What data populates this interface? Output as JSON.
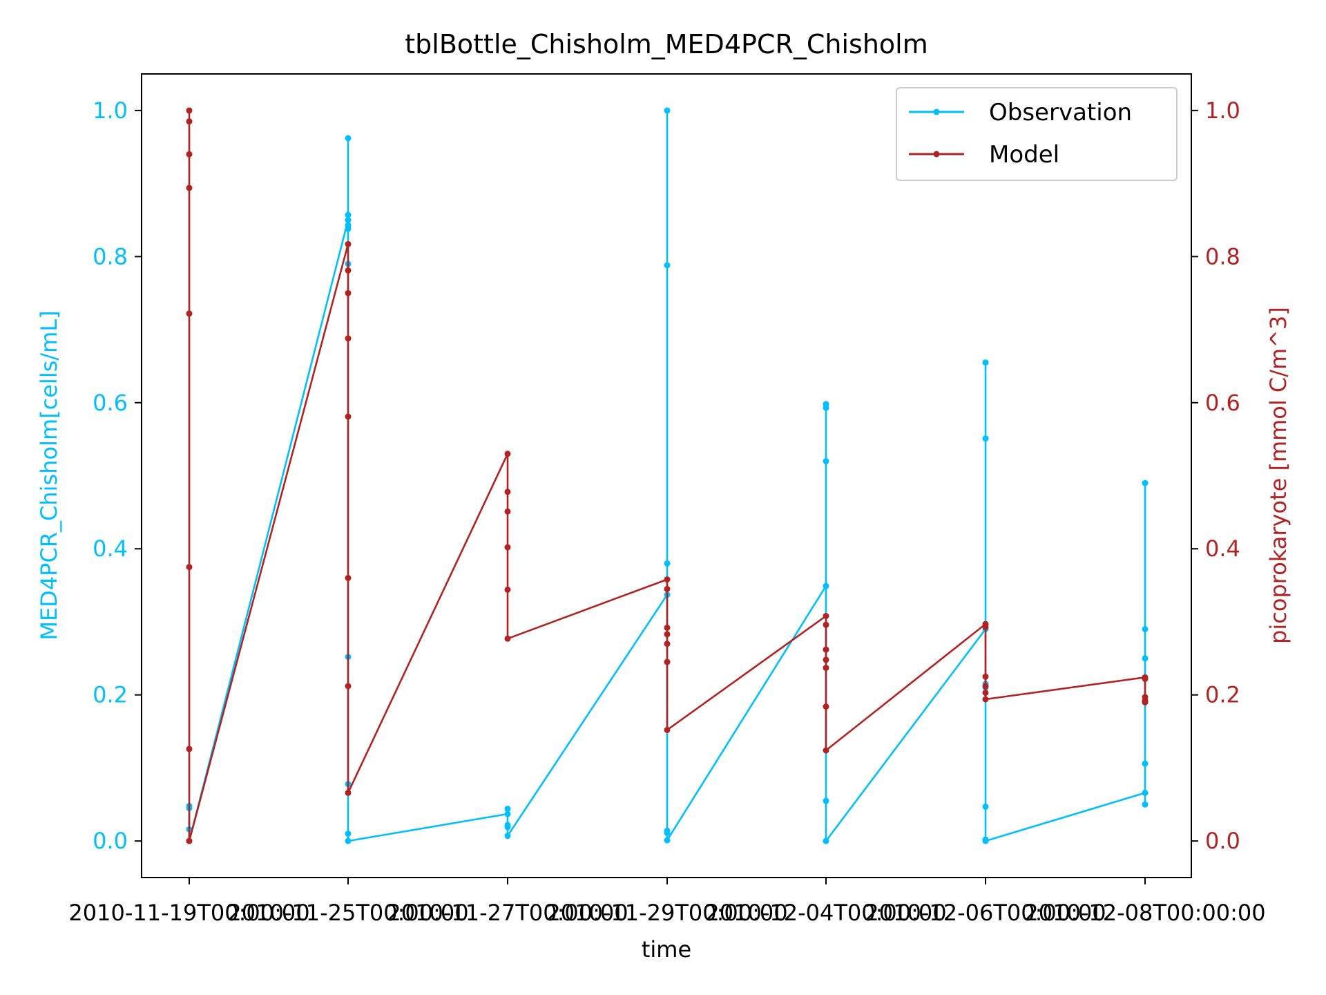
{
  "chart_data": {
    "type": "line",
    "title": "tblBottle_Chisholm_MED4PCR_Chisholm",
    "xlabel": "time",
    "ylabel_left": "MED4PCR_Chisholm[cells/mL]",
    "ylabel_right": "picoprokaryote [mmol C/m^3]",
    "x_tick_labels": [
      "2010-11-19T00:00:00",
      "2010-11-25T00:00:00",
      "2010-11-27T00:00:00",
      "2010-11-29T00:00:00",
      "2010-12-04T00:00:00",
      "2010-12-06T00:00:00",
      "2010-12-08T00:00:00"
    ],
    "y_ticks_left": [
      "0.0",
      "0.2",
      "0.4",
      "0.6",
      "0.8",
      "1.0"
    ],
    "y_ticks_right": [
      "0.0",
      "0.2",
      "0.4",
      "0.6",
      "0.8",
      "1.0"
    ],
    "ylim_left": [
      -0.05,
      1.05
    ],
    "ylim_right": [
      -0.05,
      1.05
    ],
    "legend_position": "top-right",
    "colors": {
      "observation": "#00bfff",
      "model": "#b22222",
      "axis": "#000000"
    },
    "series": [
      {
        "name": "Observation",
        "axis": "left",
        "points": [
          [
            "2010-11-19T00:00:00",
            0.048
          ],
          [
            "2010-11-19T00:00:00",
            0.045
          ],
          [
            "2010-11-19T00:00:00",
            0.016
          ],
          [
            "2010-11-19T00:00:00",
            0.0
          ],
          [
            "2010-11-25T00:00:00",
            0.85
          ],
          [
            "2010-11-25T00:00:00",
            0.962
          ],
          [
            "2010-11-25T00:00:00",
            0.857
          ],
          [
            "2010-11-25T00:00:00",
            0.843
          ],
          [
            "2010-11-25T00:00:00",
            0.838
          ],
          [
            "2010-11-25T00:00:00",
            0.79
          ],
          [
            "2010-11-25T00:00:00",
            0.252
          ],
          [
            "2010-11-25T00:00:00",
            0.078
          ],
          [
            "2010-11-25T00:00:00",
            0.01
          ],
          [
            "2010-11-25T00:00:00",
            0.0
          ],
          [
            "2010-11-27T00:00:00",
            0.037
          ],
          [
            "2010-11-27T00:00:00",
            0.044
          ],
          [
            "2010-11-27T00:00:00",
            0.022
          ],
          [
            "2010-11-27T00:00:00",
            0.019
          ],
          [
            "2010-11-27T00:00:00",
            0.007
          ],
          [
            "2010-11-29T00:00:00",
            0.337
          ],
          [
            "2010-11-29T00:00:00",
            0.38
          ],
          [
            "2010-11-29T00:00:00",
            0.788
          ],
          [
            "2010-11-29T00:00:00",
            1.0
          ],
          [
            "2010-11-29T00:00:00",
            0.014
          ],
          [
            "2010-11-29T00:00:00",
            0.011
          ],
          [
            "2010-11-29T00:00:00",
            0.001
          ],
          [
            "2010-12-04T00:00:00",
            0.349
          ],
          [
            "2010-12-04T00:00:00",
            0.52
          ],
          [
            "2010-12-04T00:00:00",
            0.593
          ],
          [
            "2010-12-04T00:00:00",
            0.598
          ],
          [
            "2010-12-04T00:00:00",
            0.055
          ],
          [
            "2010-12-04T00:00:00",
            0.0
          ],
          [
            "2010-12-06T00:00:00",
            0.29
          ],
          [
            "2010-12-06T00:00:00",
            0.551
          ],
          [
            "2010-12-06T00:00:00",
            0.655
          ],
          [
            "2010-12-06T00:00:00",
            0.215
          ],
          [
            "2010-12-06T00:00:00",
            0.21
          ],
          [
            "2010-12-06T00:00:00",
            0.047
          ],
          [
            "2010-12-06T00:00:00",
            0.002
          ],
          [
            "2010-12-06T00:00:00",
            0.0
          ],
          [
            "2010-12-08T00:00:00",
            0.066
          ],
          [
            "2010-12-08T00:00:00",
            0.05
          ],
          [
            "2010-12-08T00:00:00",
            0.106
          ],
          [
            "2010-12-08T00:00:00",
            0.19
          ],
          [
            "2010-12-08T00:00:00",
            0.25
          ],
          [
            "2010-12-08T00:00:00",
            0.29
          ],
          [
            "2010-12-08T00:00:00",
            0.49
          ]
        ]
      },
      {
        "name": "Model",
        "axis": "right",
        "points": [
          [
            "2010-11-19T00:00:00",
            1.0
          ],
          [
            "2010-11-19T00:00:00",
            0.985
          ],
          [
            "2010-11-19T00:00:00",
            0.94
          ],
          [
            "2010-11-19T00:00:00",
            0.894
          ],
          [
            "2010-11-19T00:00:00",
            0.722
          ],
          [
            "2010-11-19T00:00:00",
            0.375
          ],
          [
            "2010-11-19T00:00:00",
            0.126
          ],
          [
            "2010-11-19T00:00:00",
            0.0
          ],
          [
            "2010-11-25T00:00:00",
            0.817
          ],
          [
            "2010-11-25T00:00:00",
            0.781
          ],
          [
            "2010-11-25T00:00:00",
            0.75
          ],
          [
            "2010-11-25T00:00:00",
            0.688
          ],
          [
            "2010-11-25T00:00:00",
            0.581
          ],
          [
            "2010-11-25T00:00:00",
            0.36
          ],
          [
            "2010-11-25T00:00:00",
            0.212
          ],
          [
            "2010-11-25T00:00:00",
            0.066
          ],
          [
            "2010-11-27T00:00:00",
            0.53
          ],
          [
            "2010-11-27T00:00:00",
            0.478
          ],
          [
            "2010-11-27T00:00:00",
            0.451
          ],
          [
            "2010-11-27T00:00:00",
            0.402
          ],
          [
            "2010-11-27T00:00:00",
            0.344
          ],
          [
            "2010-11-27T00:00:00",
            0.277
          ],
          [
            "2010-11-29T00:00:00",
            0.358
          ],
          [
            "2010-11-29T00:00:00",
            0.345
          ],
          [
            "2010-11-29T00:00:00",
            0.292
          ],
          [
            "2010-11-29T00:00:00",
            0.283
          ],
          [
            "2010-11-29T00:00:00",
            0.27
          ],
          [
            "2010-11-29T00:00:00",
            0.245
          ],
          [
            "2010-11-29T00:00:00",
            0.152
          ],
          [
            "2010-12-04T00:00:00",
            0.308
          ],
          [
            "2010-12-04T00:00:00",
            0.296
          ],
          [
            "2010-12-04T00:00:00",
            0.262
          ],
          [
            "2010-12-04T00:00:00",
            0.248
          ],
          [
            "2010-12-04T00:00:00",
            0.237
          ],
          [
            "2010-12-04T00:00:00",
            0.184
          ],
          [
            "2010-12-04T00:00:00",
            0.124
          ],
          [
            "2010-12-06T00:00:00",
            0.297
          ],
          [
            "2010-12-06T00:00:00",
            0.293
          ],
          [
            "2010-12-06T00:00:00",
            0.225
          ],
          [
            "2010-12-06T00:00:00",
            0.212
          ],
          [
            "2010-12-06T00:00:00",
            0.203
          ],
          [
            "2010-12-06T00:00:00",
            0.194
          ],
          [
            "2010-12-08T00:00:00",
            0.224
          ],
          [
            "2010-12-08T00:00:00",
            0.222
          ],
          [
            "2010-12-08T00:00:00",
            0.197
          ],
          [
            "2010-12-08T00:00:00",
            0.192
          ],
          [
            "2010-12-08T00:00:00",
            0.19
          ]
        ]
      }
    ]
  }
}
